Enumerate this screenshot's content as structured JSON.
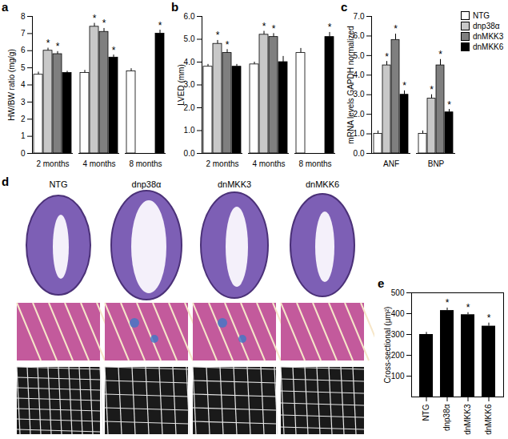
{
  "chart_data": [
    {
      "type": "bar",
      "title": "a",
      "y_label": "HW/BW ratio (mg/g)",
      "categories": [
        "2 months",
        "4 months",
        "8 months"
      ],
      "series": [
        {
          "name": "NTG",
          "color": "#ffffff",
          "values": [
            4.6,
            4.7,
            4.8
          ],
          "errors": [
            0.15,
            0.15,
            0.15
          ],
          "annotations": [
            null,
            null,
            null
          ]
        },
        {
          "name": "dnp38α",
          "color": "#c8c8c8",
          "values": [
            6.0,
            7.4,
            null
          ],
          "errors": [
            0.15,
            0.2,
            null
          ],
          "annotations": [
            "*",
            "*",
            null
          ]
        },
        {
          "name": "dnMKK3",
          "color": "#7f7f7f",
          "values": [
            5.8,
            7.1,
            null
          ],
          "errors": [
            0.15,
            0.2,
            null
          ],
          "annotations": [
            "*",
            "*",
            null
          ]
        },
        {
          "name": "dnMKK6",
          "color": "#000000",
          "values": [
            4.7,
            5.6,
            7.0
          ],
          "errors": [
            0.1,
            0.15,
            0.2
          ],
          "annotations": [
            null,
            "*",
            "*"
          ]
        }
      ],
      "ylim": [
        0,
        8
      ],
      "yticks": [
        0,
        1,
        2,
        3,
        4,
        5,
        6,
        7,
        8
      ]
    },
    {
      "type": "bar",
      "title": "b",
      "y_label": "LVED (mm)",
      "categories": [
        "2 months",
        "4 months",
        "8 months"
      ],
      "series": [
        {
          "name": "NTG",
          "color": "#ffffff",
          "values": [
            3.8,
            3.9,
            4.4
          ],
          "errors": [
            0.1,
            0.1,
            0.2
          ],
          "annotations": [
            null,
            null,
            null
          ]
        },
        {
          "name": "dnp38α",
          "color": "#c8c8c8",
          "values": [
            4.8,
            5.2,
            null
          ],
          "errors": [
            0.15,
            0.15,
            null
          ],
          "annotations": [
            "*",
            "*",
            null
          ]
        },
        {
          "name": "dnMKK3",
          "color": "#7f7f7f",
          "values": [
            4.4,
            5.1,
            null
          ],
          "errors": [
            0.15,
            0.15,
            null
          ],
          "annotations": [
            "*",
            "*",
            null
          ]
        },
        {
          "name": "dnMKK6",
          "color": "#000000",
          "values": [
            3.8,
            4.0,
            5.1
          ],
          "errors": [
            0.1,
            0.25,
            0.2
          ],
          "annotations": [
            null,
            null,
            "*"
          ]
        }
      ],
      "ylim": [
        0,
        6
      ],
      "yticks": [
        0,
        1,
        2,
        3,
        4,
        5,
        6
      ]
    },
    {
      "type": "bar",
      "title": "c",
      "y_label": "mRNA levels GAPDH normalized",
      "categories": [
        "ANF",
        "BNP"
      ],
      "series": [
        {
          "name": "NTG",
          "color": "#ffffff",
          "values": [
            1.0,
            1.0
          ],
          "errors": [
            0.15,
            0.15
          ],
          "annotations": [
            null,
            null
          ]
        },
        {
          "name": "dnp38α",
          "color": "#c8c8c8",
          "values": [
            4.5,
            2.8
          ],
          "errors": [
            0.2,
            0.2
          ],
          "annotations": [
            "*",
            "*"
          ]
        },
        {
          "name": "dnMKK3",
          "color": "#7f7f7f",
          "values": [
            5.8,
            4.5
          ],
          "errors": [
            0.3,
            0.3
          ],
          "annotations": [
            "*",
            "*"
          ]
        },
        {
          "name": "dnMKK6",
          "color": "#000000",
          "values": [
            3.0,
            2.1
          ],
          "errors": [
            0.2,
            0.15
          ],
          "annotations": [
            "*",
            "*"
          ]
        }
      ],
      "ylim": [
        0,
        7
      ],
      "yticks": [
        0,
        1,
        2,
        3,
        4,
        5,
        6,
        7
      ],
      "legend": "right"
    },
    {
      "type": "bar",
      "title": "e",
      "y_label": "Cross-sectional (μm²)",
      "categories": [
        "NTG",
        "dnp38α",
        "dnMKK3",
        "dnMKK6"
      ],
      "values": [
        300,
        415,
        395,
        340
      ],
      "errors": [
        10,
        12,
        10,
        15
      ],
      "annotations": [
        null,
        "*",
        "*",
        "*"
      ],
      "color": "#000000",
      "ylim": [
        0,
        500
      ],
      "yticks": [
        100,
        200,
        300,
        400,
        500
      ]
    }
  ],
  "panel_d": {
    "title": "d",
    "columns": [
      "NTG",
      "dnp38α",
      "dnMKK3",
      "dnMKK6"
    ]
  }
}
